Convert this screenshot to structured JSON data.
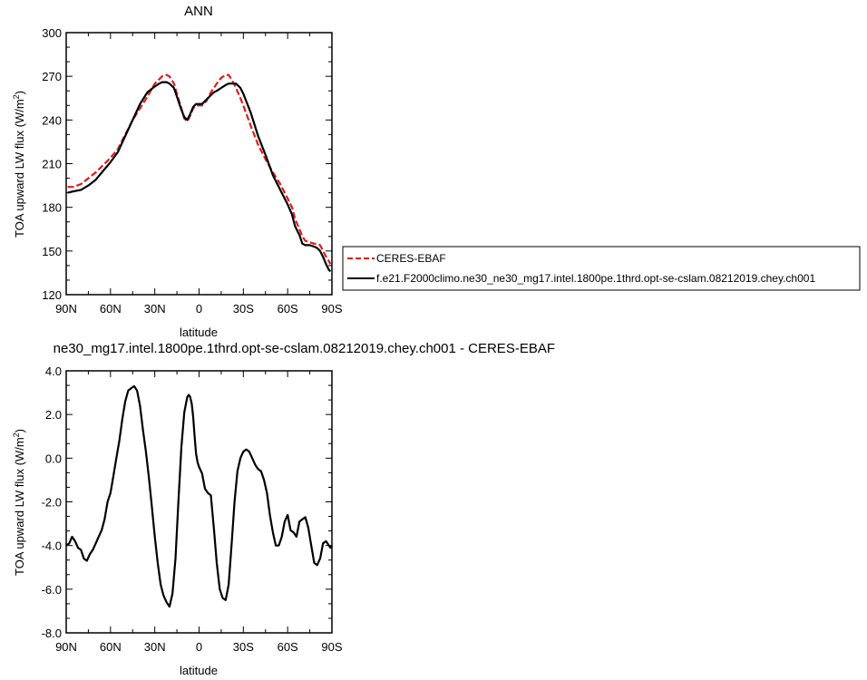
{
  "figure": {
    "top_title": "ANN",
    "bottom_title": "ne30_mg17.intel.1800pe.1thrd.opt-se-cslam.08212019.chey.ch001 - CERES-EBAF"
  },
  "chart_data": [
    {
      "type": "line",
      "title": "ANN",
      "xlabel": "latitude",
      "ylabel": "TOA upward LW flux (W/m²)",
      "xlim": [
        90,
        -90
      ],
      "ylim": [
        120,
        300
      ],
      "x_ticks": [
        90,
        60,
        30,
        0,
        -30,
        -60,
        -90
      ],
      "x_tick_labels": [
        "90N",
        "60N",
        "30N",
        "0",
        "30S",
        "60S",
        "90S"
      ],
      "y_ticks": [
        120,
        150,
        180,
        210,
        240,
        270,
        300
      ],
      "y_tick_labels": [
        "120",
        "150",
        "180",
        "210",
        "240",
        "270",
        "300"
      ],
      "grid": false,
      "legend_placement": "right, outside plot",
      "series": [
        {
          "name": "CERES-EBAF",
          "color": "#e41a1c",
          "dash": "dashed",
          "x": [
            89,
            85,
            80,
            75,
            70,
            65,
            60,
            55,
            50,
            45,
            40,
            35,
            30,
            27,
            25,
            22,
            20,
            17,
            15,
            12,
            10,
            8,
            6,
            4,
            2,
            0,
            -2,
            -5,
            -8,
            -10,
            -12,
            -15,
            -18,
            -20,
            -22,
            -25,
            -28,
            -30,
            -35,
            -40,
            -45,
            -50,
            -55,
            -60,
            -63,
            -65,
            -68,
            -70,
            -72,
            -75,
            -78,
            -80,
            -82,
            -84,
            -86,
            -88,
            -89
          ],
          "y": [
            194,
            194,
            196,
            200,
            204,
            209,
            214,
            220,
            230,
            240,
            248,
            256,
            265,
            268,
            270,
            271,
            270,
            265,
            258,
            248,
            241,
            239,
            243,
            248,
            250,
            250,
            250,
            253,
            259,
            262,
            265,
            269,
            271,
            271,
            268,
            262,
            255,
            250,
            236,
            223,
            213,
            204,
            196,
            186,
            180,
            172,
            165,
            160,
            157,
            156,
            155,
            155,
            154,
            150,
            146,
            143,
            141
          ]
        },
        {
          "name": "f.e21.F2000climo.ne30_ne30_mg17.intel.1800pe.1thrd.opt-se-cslam.08212019.chey.ch001",
          "color": "#000000",
          "dash": "solid",
          "x": [
            89,
            85,
            80,
            75,
            70,
            65,
            60,
            55,
            50,
            45,
            40,
            35,
            30,
            27,
            25,
            22,
            20,
            17,
            15,
            12,
            10,
            8,
            6,
            4,
            2,
            0,
            -2,
            -5,
            -8,
            -10,
            -12,
            -15,
            -18,
            -20,
            -22,
            -25,
            -28,
            -30,
            -35,
            -40,
            -45,
            -50,
            -55,
            -60,
            -63,
            -65,
            -68,
            -70,
            -72,
            -75,
            -78,
            -80,
            -82,
            -84,
            -86,
            -88,
            -89
          ],
          "y": [
            190,
            191,
            192,
            195,
            199,
            205,
            211,
            218,
            229,
            240,
            251,
            259,
            263,
            265,
            266,
            266,
            265,
            262,
            256,
            247,
            242,
            240,
            244,
            249,
            251,
            251,
            251,
            254,
            257,
            259,
            260,
            262,
            264,
            265,
            265,
            265,
            262,
            258,
            245,
            229,
            216,
            202,
            192,
            182,
            175,
            167,
            161,
            155,
            154,
            154,
            153,
            152,
            150,
            146,
            141,
            137,
            136
          ]
        }
      ]
    },
    {
      "type": "line",
      "title": "ne30_mg17.intel.1800pe.1thrd.opt-se-cslam.08212019.chey.ch001 - CERES-EBAF",
      "xlabel": "latitude",
      "ylabel": "TOA upward LW flux (W/m²)",
      "xlim": [
        90,
        -90
      ],
      "ylim": [
        -8,
        4
      ],
      "x_ticks": [
        90,
        60,
        30,
        0,
        -30,
        -60,
        -90
      ],
      "x_tick_labels": [
        "90N",
        "60N",
        "30N",
        "0",
        "30S",
        "60S",
        "90S"
      ],
      "y_ticks": [
        -8,
        -6,
        -4,
        -2,
        0,
        2,
        4
      ],
      "y_tick_labels": [
        "-8.0",
        "-6.0",
        "-4.0",
        "-2.0",
        "0.0",
        "2.0",
        "4.0"
      ],
      "grid": false,
      "series": [
        {
          "color": "#000000",
          "x": [
            90,
            88,
            86,
            84,
            82,
            80,
            78,
            76,
            74,
            72,
            70,
            68,
            66,
            64,
            62,
            60,
            58,
            56,
            54,
            52,
            50,
            48,
            46,
            44,
            42,
            40,
            38,
            36,
            34,
            32,
            30,
            28,
            26,
            24,
            22,
            20,
            18,
            16,
            14,
            12,
            10,
            8,
            7,
            6,
            5,
            4,
            3,
            2,
            1,
            0,
            -2,
            -4,
            -6,
            -8,
            -10,
            -12,
            -14,
            -16,
            -18,
            -20,
            -22,
            -24,
            -26,
            -28,
            -30,
            -32,
            -34,
            -36,
            -38,
            -40,
            -42,
            -44,
            -46,
            -48,
            -50,
            -52,
            -54,
            -56,
            -58,
            -60,
            -62,
            -64,
            -66,
            -68,
            -70,
            -72,
            -74,
            -76,
            -78,
            -80,
            -82,
            -84,
            -86,
            -88,
            -89,
            -90
          ],
          "y": [
            -4.0,
            -3.9,
            -3.6,
            -3.8,
            -4.1,
            -4.2,
            -4.6,
            -4.7,
            -4.4,
            -4.2,
            -3.9,
            -3.6,
            -3.3,
            -2.8,
            -2.0,
            -1.6,
            -0.8,
            0.0,
            0.8,
            1.8,
            2.6,
            3.1,
            3.2,
            3.3,
            3.1,
            2.4,
            1.3,
            0.3,
            -0.9,
            -2.2,
            -3.6,
            -4.8,
            -5.8,
            -6.3,
            -6.6,
            -6.8,
            -6.2,
            -4.6,
            -2.0,
            0.5,
            2.1,
            2.8,
            2.9,
            2.8,
            2.5,
            1.9,
            1.0,
            0.2,
            -0.2,
            -0.4,
            -0.7,
            -1.4,
            -1.6,
            -1.7,
            -3.2,
            -4.8,
            -6.0,
            -6.4,
            -6.5,
            -5.8,
            -4.0,
            -2.0,
            -0.6,
            0.0,
            0.3,
            0.4,
            0.3,
            0.0,
            -0.3,
            -0.5,
            -0.6,
            -1.0,
            -1.6,
            -2.6,
            -3.4,
            -4.0,
            -4.0,
            -3.6,
            -2.9,
            -2.6,
            -3.3,
            -3.4,
            -3.6,
            -2.9,
            -2.8,
            -2.7,
            -3.2,
            -4.0,
            -4.8,
            -4.9,
            -4.6,
            -3.9,
            -3.8,
            -4.0,
            -4.1,
            -4.0
          ]
        }
      ]
    }
  ]
}
